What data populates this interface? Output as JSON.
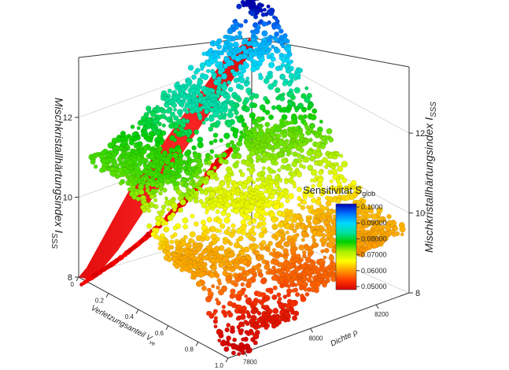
{
  "chart_data": {
    "type": "scatter",
    "projection": "3d",
    "title": "",
    "zlabel_left": "Mischkristallhärtungsindex I",
    "zlabel_right": "Mischkristallhärtungsindex I",
    "zlabel_sub": "SSS",
    "xlabel": "Verletzungsanteil V",
    "xlabel_sub": "ve",
    "ylabel": "Dichte ρ",
    "z_ticks": [
      "8",
      "10",
      "12"
    ],
    "z_ticks_right": [
      "8",
      "10",
      "12"
    ],
    "x_ticks": [
      "0",
      "0.2",
      "0.4",
      "0.6",
      "0.8",
      "1.0"
    ],
    "y_ticks": [
      "7800",
      "8000",
      "8200"
    ],
    "xlim": [
      0,
      1.0
    ],
    "ylim": [
      7750,
      8300
    ],
    "zlim": [
      8,
      13.5
    ],
    "grid": true,
    "legend": {
      "placement": "right",
      "title": "Sensitivität S",
      "title_sub": "glob",
      "labels": [
        "0.1000",
        "0.09000",
        "0.08000",
        "0.07000",
        "0.06000",
        "0.05000"
      ],
      "range": [
        0.05,
        0.1
      ]
    },
    "colormap": [
      "#d40000",
      "#ff3a00",
      "#ff9a00",
      "#ffff00",
      "#a8f000",
      "#00d000",
      "#00e0a0",
      "#00d8ff",
      "#0070ff",
      "#0000b0"
    ],
    "series": [
      {
        "color": "#ff0000",
        "description": "projection onto back wall",
        "sensitivity": 0.05,
        "points": [
          {
            "x": 0.05,
            "y": 7800,
            "z": 8.0
          },
          {
            "x": 0.25,
            "y": 7800,
            "z": 8.9
          },
          {
            "x": 0.45,
            "y": 7800,
            "z": 9.9
          },
          {
            "x": 0.65,
            "y": 7800,
            "z": 11.0
          },
          {
            "x": 0.85,
            "y": 7800,
            "z": 12.2
          },
          {
            "x": 1.0,
            "y": 7800,
            "z": 13.2
          }
        ]
      },
      {
        "description": "surface samples",
        "points": [
          {
            "x": 1.0,
            "y": 7780,
            "z": 8.0,
            "s": 0.05
          },
          {
            "x": 1.0,
            "y": 7900,
            "z": 8.4,
            "s": 0.052
          },
          {
            "x": 0.9,
            "y": 8050,
            "z": 9.0,
            "s": 0.058
          },
          {
            "x": 0.8,
            "y": 8150,
            "z": 9.6,
            "s": 0.062
          },
          {
            "x": 0.6,
            "y": 7850,
            "z": 9.4,
            "s": 0.062
          },
          {
            "x": 0.5,
            "y": 8000,
            "z": 10.3,
            "s": 0.068
          },
          {
            "x": 0.4,
            "y": 8150,
            "z": 11.0,
            "s": 0.074
          },
          {
            "x": 0.3,
            "y": 7900,
            "z": 10.9,
            "s": 0.076
          },
          {
            "x": 0.2,
            "y": 8050,
            "z": 11.9,
            "s": 0.084
          },
          {
            "x": 0.1,
            "y": 8200,
            "z": 12.6,
            "s": 0.09
          },
          {
            "x": 0.0,
            "y": 8280,
            "z": 13.4,
            "s": 0.1
          }
        ]
      }
    ]
  }
}
